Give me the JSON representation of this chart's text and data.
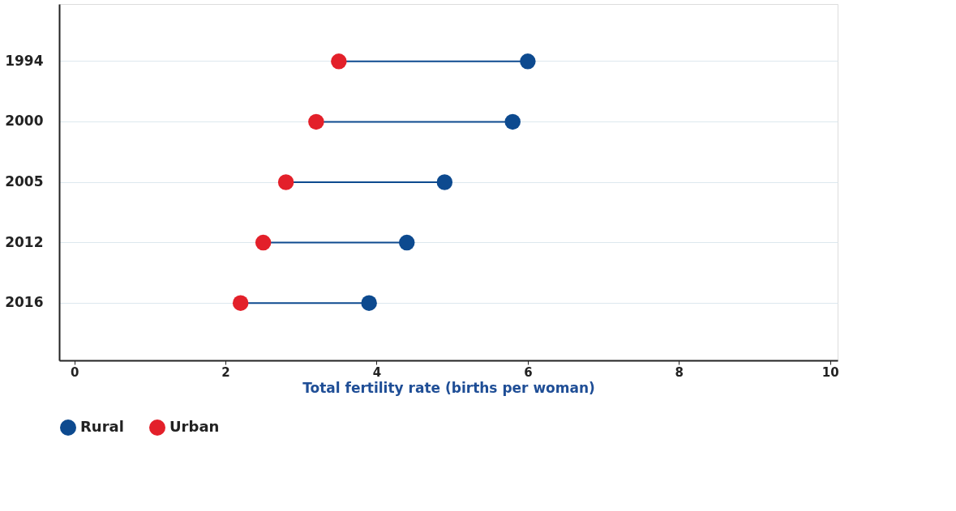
{
  "chart_data": {
    "type": "scatter",
    "orientation": "horizontal",
    "xlabel": "Total fertility rate (births per woman)",
    "categories": [
      "1994",
      "2000",
      "2005",
      "2012",
      "2016"
    ],
    "series": [
      {
        "name": "Rural",
        "color": "#0d4a8f",
        "values": [
          6.0,
          5.8,
          4.9,
          4.4,
          3.9
        ]
      },
      {
        "name": "Urban",
        "color": "#e3202a",
        "values": [
          3.5,
          3.2,
          2.8,
          2.5,
          2.2
        ]
      }
    ],
    "xlim": [
      -0.2,
      10.1
    ],
    "xticks": [
      0,
      2,
      4,
      6,
      8,
      10
    ],
    "grid": "y",
    "legend": "bottom",
    "marker": "circle"
  }
}
